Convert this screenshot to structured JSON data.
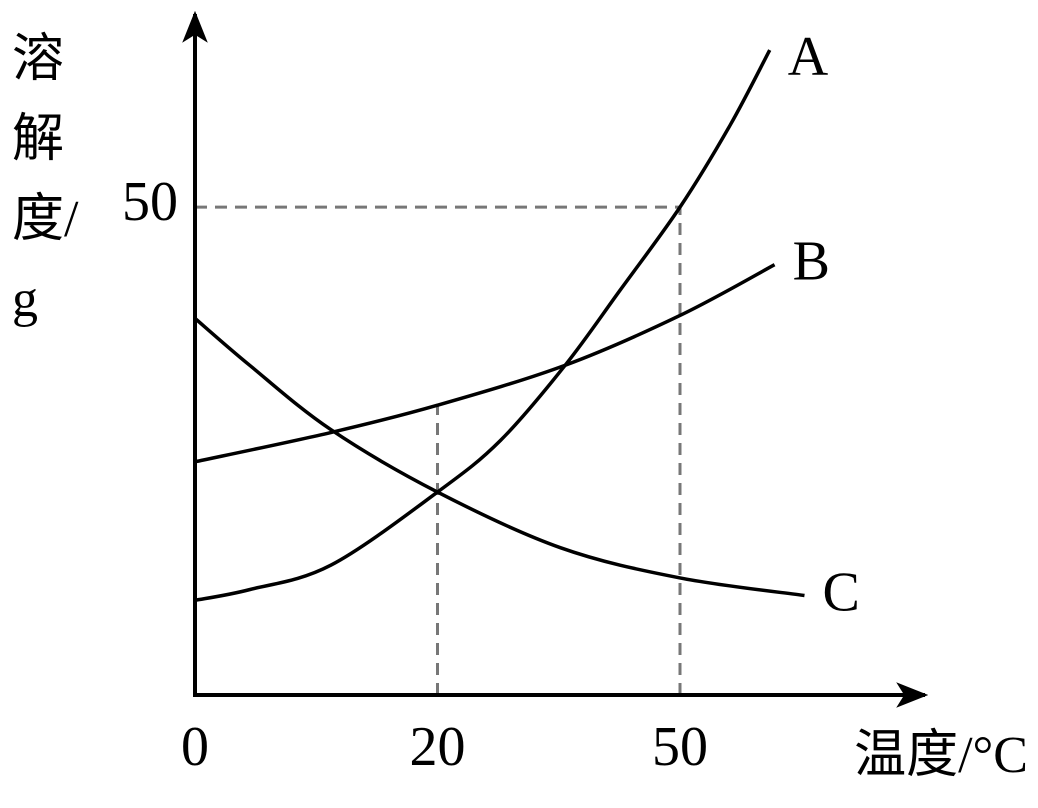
{
  "chart_data": {
    "type": "line",
    "y_label": "溶解度/g",
    "x_label": "温度/°C",
    "xlim": [
      0,
      79
    ],
    "xticks": [
      0,
      20,
      50
    ],
    "ylim": [
      0,
      70
    ],
    "yticks": [
      50
    ],
    "series": [
      {
        "name": "A",
        "color": "#000000",
        "x": [
          0,
          4.5,
          11.2,
          20,
          27.8,
          35.8,
          42.6,
          50,
          56.2,
          61.1
        ],
        "values": [
          9.7,
          10.8,
          13.3,
          20.8,
          26.1,
          33.8,
          41.5,
          50,
          58.4,
          66.1
        ]
      },
      {
        "name": "B",
        "color": "#000000",
        "x": [
          0,
          11.2,
          20,
          35.8,
          50,
          61.7
        ],
        "values": [
          23.9,
          26.9,
          29.7,
          33.8,
          38.9,
          44.1
        ]
      },
      {
        "name": "C",
        "color": "#000000",
        "x": [
          0,
          4.5,
          11.2,
          20,
          35.2,
          50,
          65.4
        ],
        "values": [
          38.6,
          33.8,
          27.2,
          20.8,
          15.1,
          12.0,
          10.2
        ]
      }
    ]
  }
}
